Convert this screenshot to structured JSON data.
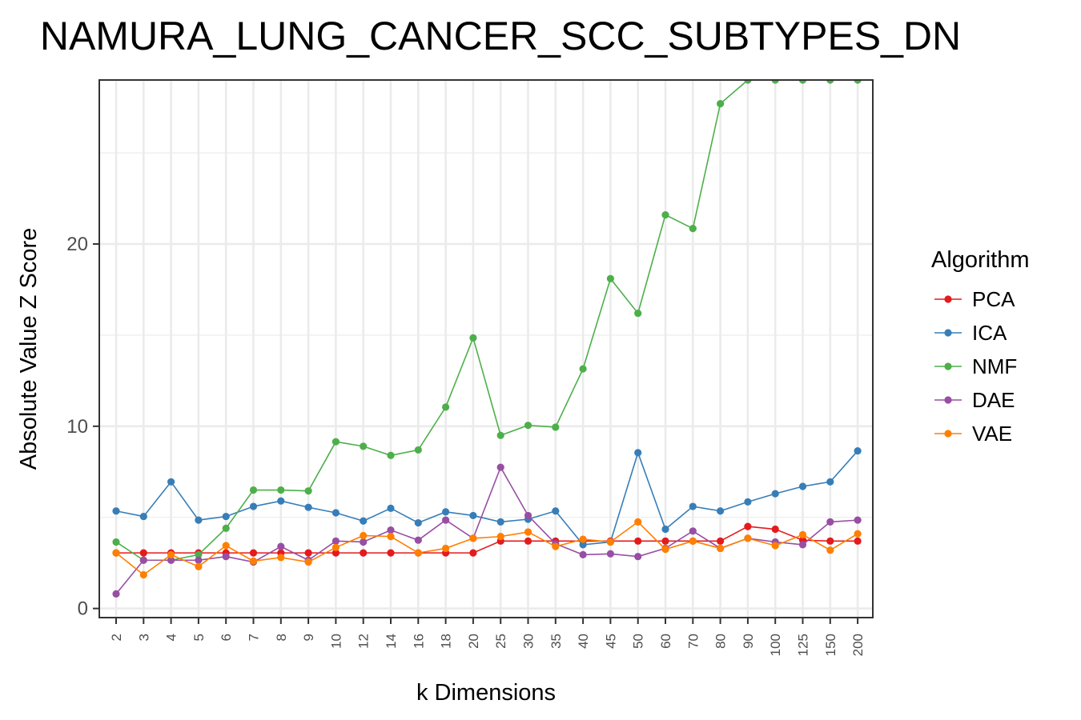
{
  "chart_data": {
    "type": "line",
    "title": "NAMURA_LUNG_CANCER_SCC_SUBTYPES_DN",
    "xlabel": "k Dimensions",
    "ylabel": "Absolute Value Z Score",
    "categories": [
      "2",
      "3",
      "4",
      "5",
      "6",
      "7",
      "8",
      "9",
      "10",
      "12",
      "14",
      "16",
      "18",
      "20",
      "25",
      "30",
      "35",
      "40",
      "45",
      "50",
      "60",
      "70",
      "80",
      "90",
      "100",
      "125",
      "150",
      "200"
    ],
    "ylim": [
      -0.5,
      29
    ],
    "yticks": [
      0,
      10,
      20
    ],
    "grid": true,
    "legend": {
      "title": "Algorithm",
      "position": "right"
    },
    "series": [
      {
        "name": "PCA",
        "color": "#e41a1c",
        "values": [
          3.05,
          3.05,
          3.05,
          3.05,
          3.05,
          3.05,
          3.05,
          3.05,
          3.05,
          3.05,
          3.05,
          3.05,
          3.05,
          3.05,
          3.7,
          3.7,
          3.7,
          3.7,
          3.7,
          3.7,
          3.7,
          3.7,
          3.7,
          4.5,
          4.35,
          3.75,
          3.7,
          3.7
        ]
      },
      {
        "name": "ICA",
        "color": "#377eb8",
        "values": [
          5.35,
          5.05,
          6.95,
          4.85,
          5.05,
          5.6,
          5.9,
          5.55,
          5.25,
          4.8,
          5.5,
          4.7,
          5.3,
          5.1,
          4.75,
          4.9,
          5.35,
          3.5,
          3.65,
          8.55,
          4.35,
          5.6,
          5.35,
          5.85,
          6.3,
          6.7,
          6.95,
          8.65
        ]
      },
      {
        "name": "NMF",
        "color": "#4daf4a",
        "values": [
          3.65,
          2.65,
          2.65,
          2.95,
          4.4,
          6.5,
          6.5,
          6.45,
          9.15,
          8.9,
          8.4,
          8.7,
          11.05,
          14.85,
          9.5,
          10.05,
          9.95,
          13.15,
          18.1,
          16.2,
          21.6,
          20.85,
          27.7,
          29.0,
          29.0,
          29.0,
          29.0,
          29.0
        ]
      },
      {
        "name": "DAE",
        "color": "#984ea3",
        "values": [
          0.8,
          2.65,
          2.65,
          2.65,
          2.85,
          2.55,
          3.4,
          2.65,
          3.7,
          3.65,
          4.3,
          3.75,
          4.85,
          3.85,
          7.75,
          5.1,
          3.55,
          2.95,
          3.0,
          2.85,
          3.3,
          4.25,
          3.3,
          3.85,
          3.65,
          3.5,
          4.75,
          4.85
        ]
      },
      {
        "name": "VAE",
        "color": "#ff7f00",
        "values": [
          3.05,
          1.85,
          2.95,
          2.3,
          3.45,
          2.6,
          2.8,
          2.55,
          3.35,
          4.0,
          3.95,
          3.05,
          3.3,
          3.85,
          3.95,
          4.2,
          3.4,
          3.8,
          3.65,
          4.75,
          3.25,
          3.7,
          3.3,
          3.85,
          3.45,
          4.05,
          3.2,
          4.1
        ]
      }
    ]
  }
}
